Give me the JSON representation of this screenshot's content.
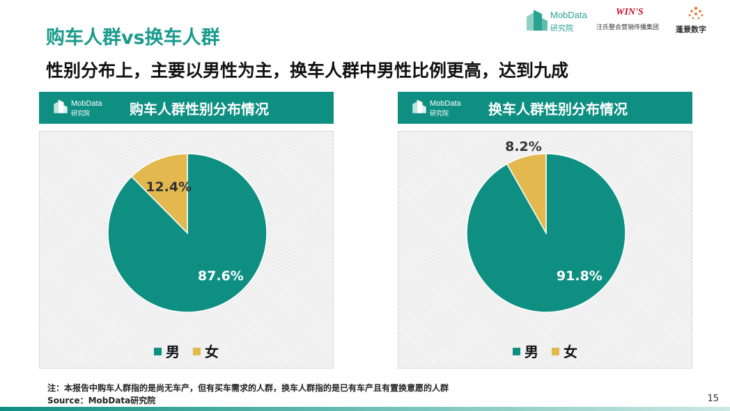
{
  "title": "购车人群vs换车人群",
  "subtitle": "性别分布上，主要以男性为主，换车人群中男性比例更高，达到九成",
  "logos": {
    "mob_en": "MobData",
    "mob_cn": "研究院",
    "wins": "WIN'S",
    "wins_cn": "汪氏整合营销传播集团",
    "peng": "蓬景数字"
  },
  "panels": [
    {
      "logo_en": "MobData",
      "logo_cn": "研究院",
      "heading": "购车人群性别分布情况",
      "legend": [
        "男",
        "女"
      ]
    },
    {
      "logo_en": "MobData",
      "logo_cn": "研究院",
      "heading": "换车人群性别分布情况",
      "legend": [
        "男",
        "女"
      ]
    }
  ],
  "chart_data": [
    {
      "type": "pie",
      "categories": [
        "男",
        "女"
      ],
      "values": [
        87.6,
        12.4
      ],
      "labels": [
        "87.6%",
        "12.4%"
      ],
      "colors": [
        "#0e8f82",
        "#e3b84f"
      ],
      "legend_position": "bottom"
    },
    {
      "type": "pie",
      "categories": [
        "男",
        "女"
      ],
      "values": [
        91.8,
        8.2
      ],
      "labels": [
        "91.8%",
        "8.2%"
      ],
      "colors": [
        "#0e8f82",
        "#e3b84f"
      ],
      "legend_position": "bottom"
    }
  ],
  "footer": {
    "note": "注：本报告中购车人群指的是尚无车产，但有买车需求的人群，换车人群指的是已有车产且有置换意愿的人群",
    "source": "Source：MobData研究院",
    "page": "15"
  }
}
